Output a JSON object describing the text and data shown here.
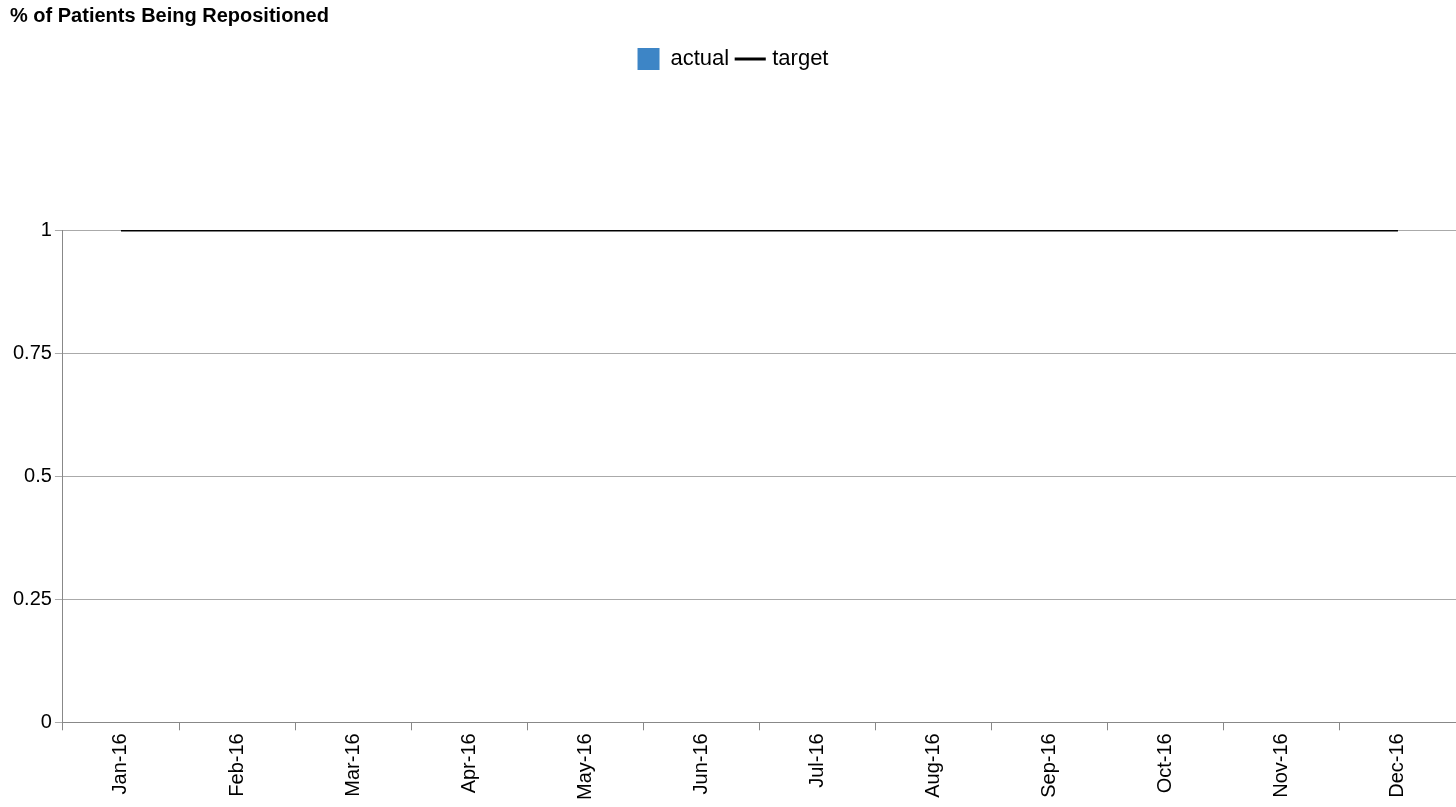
{
  "chart_data": {
    "type": "bar",
    "title": "% of Patients Being Repositioned",
    "categories": [
      "Jan-16",
      "Feb-16",
      "Mar-16",
      "Apr-16",
      "May-16",
      "Jun-16",
      "Jul-16",
      "Aug-16",
      "Sep-16",
      "Oct-16",
      "Nov-16",
      "Dec-16"
    ],
    "series": [
      {
        "name": "actual",
        "color": "#3d85c6",
        "values": [
          null,
          null,
          null,
          null,
          null,
          null,
          null,
          null,
          null,
          null,
          null,
          null
        ]
      },
      {
        "name": "target",
        "type": "line",
        "color": "#000000",
        "values": [
          1,
          1,
          1,
          1,
          1,
          1,
          1,
          1,
          1,
          1,
          1,
          1
        ]
      }
    ],
    "ylim": [
      0,
      1
    ],
    "yticks": [
      0,
      0.25,
      0.5,
      0.75,
      1
    ],
    "grid": "y",
    "legend": "top",
    "marker": "none",
    "line_style": "solid"
  }
}
